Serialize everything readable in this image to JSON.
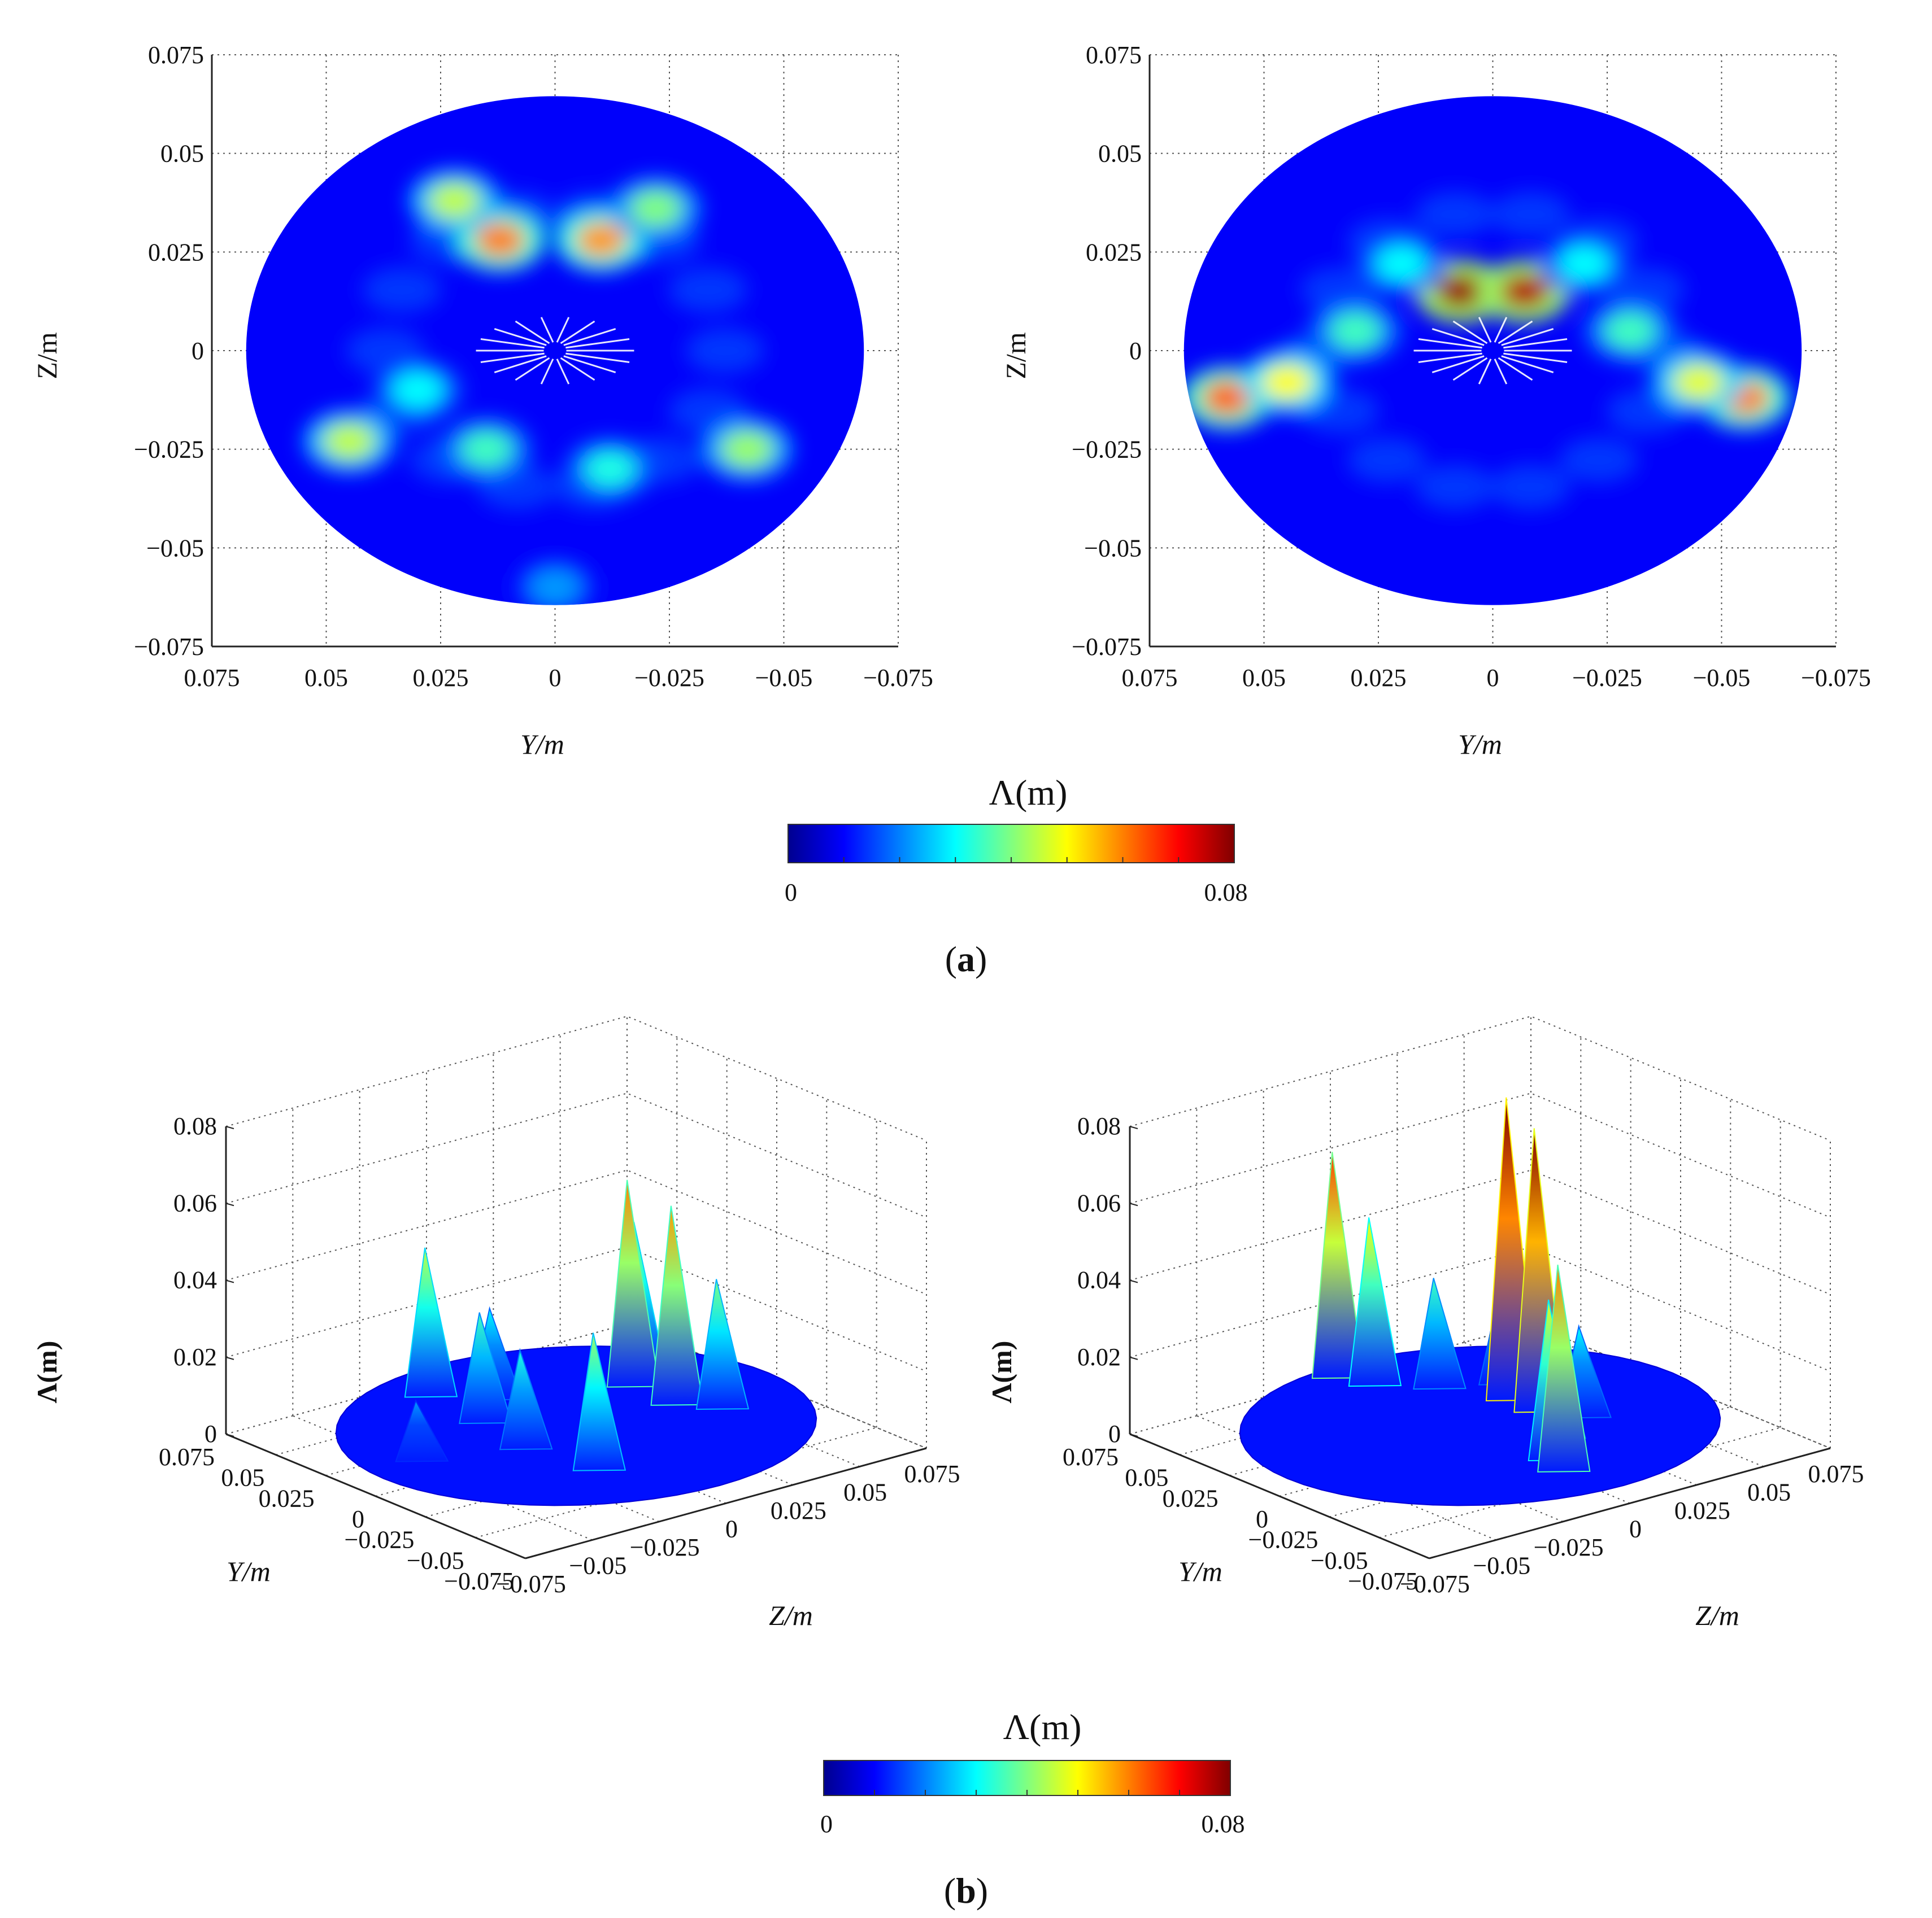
{
  "colormap": {
    "name": "jet",
    "stops": [
      "#00008f",
      "#0000ff",
      "#0080ff",
      "#00ffff",
      "#80ff80",
      "#ffff00",
      "#ff8000",
      "#ff0000",
      "#800000"
    ]
  },
  "panels": [
    {
      "label": "(",
      "letter": "a",
      "close": ")"
    },
    {
      "label": "(",
      "letter": "b",
      "close": ")"
    }
  ],
  "colorbars": [
    {
      "title": "Λ(m)",
      "min_label": "0",
      "max_label": "0.08",
      "range": [
        0,
        0.08
      ]
    },
    {
      "title": "Λ(m)",
      "min_label": "0",
      "max_label": "0.08",
      "range": [
        0,
        0.08
      ]
    }
  ],
  "chart_data": [
    {
      "type": "heatmap",
      "panel": "a",
      "position": "left",
      "xlabel": "Y/m",
      "ylabel": "Z/m",
      "xlim": [
        0.075,
        -0.075
      ],
      "ylim": [
        -0.075,
        0.075
      ],
      "x_ticks": [
        "0.075",
        "0.05",
        "0.025",
        "0",
        "−0.025",
        "−0.05",
        "−0.075"
      ],
      "y_ticks": [
        "0.075",
        "0.05",
        "0.025",
        "0",
        "−0.025",
        "−0.05",
        "−0.075"
      ],
      "grid": true,
      "value_range": [
        0,
        0.08
      ],
      "hotspots": [
        {
          "y": 0.012,
          "z": 0.028,
          "value": 0.06
        },
        {
          "y": -0.01,
          "z": 0.028,
          "value": 0.058
        },
        {
          "y": 0.022,
          "z": 0.038,
          "value": 0.045
        },
        {
          "y": -0.022,
          "z": 0.036,
          "value": 0.04
        },
        {
          "y": 0.045,
          "z": -0.023,
          "value": 0.045
        },
        {
          "y": -0.042,
          "z": -0.025,
          "value": 0.042
        },
        {
          "y": 0.015,
          "z": -0.025,
          "value": 0.035
        },
        {
          "y": -0.012,
          "z": -0.03,
          "value": 0.032
        },
        {
          "y": 0.03,
          "z": -0.01,
          "value": 0.03
        },
        {
          "y": 0.0,
          "z": -0.06,
          "value": 0.022
        }
      ]
    },
    {
      "type": "heatmap",
      "panel": "a",
      "position": "right",
      "xlabel": "Y/m",
      "ylabel": "Z/m",
      "xlim": [
        0.075,
        -0.075
      ],
      "ylim": [
        -0.075,
        0.075
      ],
      "x_ticks": [
        "0.075",
        "0.05",
        "0.025",
        "0",
        "−0.025",
        "−0.05",
        "−0.075"
      ],
      "y_ticks": [
        "0.075",
        "0.05",
        "0.025",
        "0",
        "−0.025",
        "−0.05",
        "−0.075"
      ],
      "grid": true,
      "value_range": [
        0,
        0.08
      ],
      "hotspots": [
        {
          "y": 0.007,
          "z": 0.015,
          "value": 0.078
        },
        {
          "y": -0.007,
          "z": 0.015,
          "value": 0.076
        },
        {
          "y": 0.058,
          "z": -0.012,
          "value": 0.062
        },
        {
          "y": 0.045,
          "z": -0.008,
          "value": 0.05
        },
        {
          "y": -0.055,
          "z": -0.012,
          "value": 0.06
        },
        {
          "y": -0.045,
          "z": -0.008,
          "value": 0.048
        },
        {
          "y": 0.03,
          "z": 0.005,
          "value": 0.035
        },
        {
          "y": -0.03,
          "z": 0.005,
          "value": 0.035
        },
        {
          "y": 0.02,
          "z": 0.022,
          "value": 0.03
        },
        {
          "y": -0.02,
          "z": 0.022,
          "value": 0.03
        }
      ]
    },
    {
      "type": "surface",
      "panel": "b",
      "position": "left",
      "xlabel": "Y/m",
      "ylabel": "Z/m",
      "zlabel": "Λ(m)",
      "y_ticks": [
        "0.075",
        "0.05",
        "0.025",
        "0",
        "−0.025",
        "−0.05",
        "−0.075"
      ],
      "zaxis_ticks": [
        "−0.075",
        "−0.05",
        "−0.025",
        "0",
        "0.025",
        "0.05",
        "0.075"
      ],
      "value_ticks": [
        "0",
        "0.02",
        "0.04",
        "0.06",
        "0.08"
      ],
      "zlim": [
        0,
        0.08
      ],
      "grid": true,
      "peaks": [
        {
          "y": 0.012,
          "z": 0.028,
          "value": 0.06
        },
        {
          "y": -0.01,
          "z": 0.028,
          "value": 0.058
        },
        {
          "y": 0.022,
          "z": 0.038,
          "value": 0.045
        },
        {
          "y": 0.045,
          "z": -0.023,
          "value": 0.045
        },
        {
          "y": -0.042,
          "z": -0.025,
          "value": 0.042
        },
        {
          "y": 0.015,
          "z": -0.025,
          "value": 0.035
        },
        {
          "y": -0.012,
          "z": -0.03,
          "value": 0.032
        },
        {
          "y": 0.03,
          "z": -0.01,
          "value": 0.03
        },
        {
          "y": -0.022,
          "z": 0.036,
          "value": 0.04
        },
        {
          "y": 0.0,
          "z": -0.06,
          "value": 0.022
        }
      ]
    },
    {
      "type": "surface",
      "panel": "b",
      "position": "right",
      "xlabel": "Y/m",
      "ylabel": "Z/m",
      "zlabel": "Λ(m)",
      "y_ticks": [
        "0.075",
        "0.05",
        "0.025",
        "0",
        "−0.025",
        "−0.05",
        "−0.075"
      ],
      "zaxis_ticks": [
        "−0.075",
        "−0.05",
        "−0.025",
        "0",
        "0.025",
        "0.05",
        "0.075"
      ],
      "value_ticks": [
        "0",
        "0.02",
        "0.04",
        "0.06",
        "0.08"
      ],
      "zlim": [
        0,
        0.08
      ],
      "grid": true,
      "peaks": [
        {
          "y": 0.007,
          "z": 0.015,
          "value": 0.085
        },
        {
          "y": -0.007,
          "z": 0.015,
          "value": 0.08
        },
        {
          "y": 0.058,
          "z": -0.012,
          "value": 0.065
        },
        {
          "y": 0.045,
          "z": -0.008,
          "value": 0.05
        },
        {
          "y": -0.055,
          "z": -0.012,
          "value": 0.06
        },
        {
          "y": -0.045,
          "z": -0.008,
          "value": 0.048
        },
        {
          "y": 0.03,
          "z": 0.005,
          "value": 0.035
        },
        {
          "y": -0.03,
          "z": 0.005,
          "value": 0.035
        },
        {
          "y": 0.02,
          "z": 0.022,
          "value": 0.03
        },
        {
          "y": -0.02,
          "z": 0.022,
          "value": 0.03
        }
      ]
    }
  ]
}
